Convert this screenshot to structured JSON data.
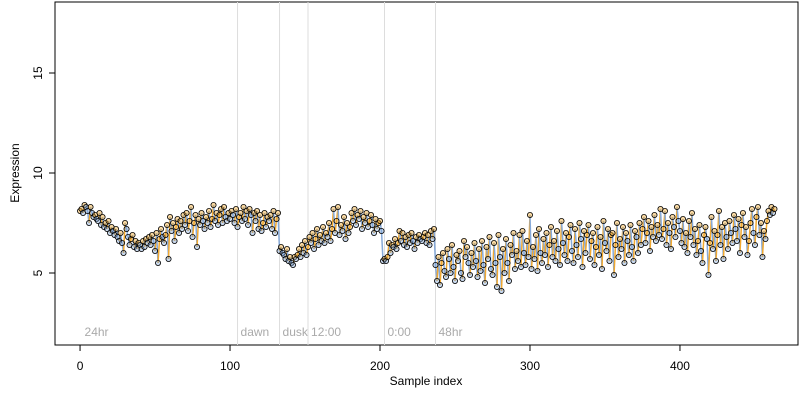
{
  "chart_data": {
    "type": "line",
    "x_label": "Sample index",
    "y_label": "Expression",
    "xlim": [
      -16.7,
      478.7
    ],
    "ylim": [
      1.4,
      18.55
    ],
    "xticks": [
      0,
      100,
      200,
      300,
      400
    ],
    "yticks": [
      5,
      10,
      15
    ],
    "up_color": "#f0a830",
    "down_color": "#86a9d8",
    "vline_color": "#dddddd",
    "annotation_color": "#aaaaaa",
    "annotations": [
      {
        "x": 1,
        "label": "24hr",
        "vline": false
      },
      {
        "x": 105,
        "label": "dawn",
        "vline": true
      },
      {
        "x": 133,
        "label": "dusk",
        "vline": true
      },
      {
        "x": 152,
        "label": "12:00",
        "vline": true
      },
      {
        "x": 203,
        "label": "0:00",
        "vline": true
      },
      {
        "x": 237,
        "label": "48hr",
        "vline": true
      }
    ],
    "values": [
      8.1,
      8.2,
      8.0,
      8.4,
      8.3,
      8.1,
      7.5,
      8.3,
      8.0,
      7.8,
      7.9,
      7.7,
      7.6,
      8.0,
      7.4,
      7.8,
      7.3,
      7.5,
      7.2,
      7.6,
      7.0,
      7.3,
      7.1,
      6.9,
      7.2,
      6.8,
      6.6,
      7.0,
      6.5,
      6.0,
      7.5,
      7.2,
      6.8,
      6.4,
      6.7,
      6.9,
      6.3,
      6.6,
      6.2,
      6.5,
      6.4,
      6.2,
      6.6,
      6.3,
      6.7,
      6.5,
      6.8,
      6.4,
      6.9,
      6.6,
      6.1,
      7.0,
      5.5,
      6.7,
      7.2,
      6.8,
      6.5,
      6.9,
      7.4,
      5.7,
      7.8,
      7.1,
      7.5,
      6.6,
      7.3,
      7.7,
      7.0,
      7.6,
      7.2,
      7.9,
      7.4,
      8.0,
      7.1,
      7.6,
      8.3,
      6.8,
      7.5,
      7.9,
      6.3,
      7.7,
      7.4,
      8.0,
      7.6,
      7.2,
      7.8,
      7.5,
      8.1,
      7.3,
      7.7,
      8.4,
      7.6,
      8.0,
      7.4,
      7.9,
      8.2,
      7.5,
      8.3,
      7.8,
      7.6,
      8.0,
      7.7,
      8.1,
      7.9,
      7.5,
      8.2,
      7.3,
      7.8,
      8.0,
      7.6,
      8.3,
      7.7,
      8.1,
      7.4,
      8.2,
      7.9,
      7.0,
      8.0,
      7.6,
      8.1,
      7.2,
      7.9,
      7.1,
      7.5,
      8.0,
      7.3,
      7.8,
      7.6,
      7.9,
      7.2,
      8.1,
      7.0,
      7.7,
      8.0,
      6.1,
      6.3,
      6.0,
      5.9,
      5.7,
      6.2,
      5.6,
      5.8,
      5.5,
      5.4,
      5.8,
      5.7,
      5.9,
      6.2,
      5.8,
      6.4,
      6.0,
      6.6,
      5.9,
      6.3,
      6.8,
      6.5,
      7.0,
      6.2,
      6.7,
      7.2,
      6.4,
      6.9,
      6.6,
      7.3,
      6.5,
      7.0,
      6.8,
      7.5,
      6.6,
      7.2,
      8.2,
      7.0,
      7.6,
      8.3,
      6.9,
      7.4,
      7.1,
      7.8,
      6.7,
      7.5,
      7.0,
      7.3,
      8.0,
      7.6,
      8.2,
      7.4,
      7.9,
      7.7,
      8.1,
      7.2,
      7.8,
      7.5,
      8.0,
      7.3,
      7.6,
      7.9,
      7.4,
      7.0,
      7.7,
      7.2,
      7.5,
      7.6,
      7.1,
      5.6,
      5.7,
      5.6,
      5.8,
      6.5,
      6.0,
      6.4,
      6.3,
      6.7,
      6.2,
      6.5,
      7.1,
      6.6,
      7.0,
      6.4,
      6.8,
      6.3,
      6.9,
      6.5,
      7.0,
      6.6,
      6.2,
      6.8,
      6.5,
      6.9,
      6.7,
      6.6,
      6.8,
      7.0,
      6.5,
      6.9,
      6.4,
      7.1,
      6.7,
      7.2,
      5.4,
      4.6,
      5.8,
      4.4,
      5.5,
      6.0,
      5.1,
      4.8,
      6.2,
      5.7,
      5.0,
      6.4,
      5.3,
      4.6,
      5.9,
      5.6,
      6.1,
      5.0,
      4.7,
      6.6,
      5.8,
      6.3,
      5.5,
      4.9,
      6.0,
      5.3,
      6.5,
      5.6,
      4.8,
      6.2,
      5.1,
      6.6,
      5.4,
      4.5,
      6.3,
      5.7,
      6.8,
      5.2,
      4.9,
      6.5,
      5.5,
      4.3,
      6.9,
      5.8,
      4.1,
      6.2,
      5.0,
      6.7,
      5.5,
      4.6,
      6.4,
      5.9,
      7.0,
      5.2,
      6.1,
      5.6,
      6.9,
      5.3,
      7.1,
      6.0,
      5.4,
      6.6,
      5.8,
      7.9,
      5.2,
      6.3,
      5.7,
      6.9,
      5.1,
      7.2,
      6.0,
      5.5,
      6.7,
      5.9,
      7.0,
      5.3,
      6.4,
      7.3,
      5.8,
      6.6,
      5.6,
      7.1,
      6.2,
      5.4,
      7.6,
      6.5,
      5.9,
      7.0,
      5.6,
      6.8,
      7.4,
      6.1,
      5.5,
      7.2,
      6.4,
      5.8,
      7.5,
      6.7,
      5.3,
      7.1,
      6.0,
      6.9,
      7.4,
      5.7,
      6.6,
      7.0,
      5.4,
      6.3,
      7.3,
      5.9,
      6.8,
      5.2,
      7.6,
      6.5,
      6.1,
      7.2,
      5.6,
      6.9,
      7.0,
      4.9,
      6.4,
      7.5,
      5.8,
      6.7,
      6.2,
      7.3,
      5.5,
      7.0,
      6.6,
      5.9,
      7.4,
      6.3,
      5.6,
      7.1,
      6.8,
      6.0,
      7.5,
      6.4,
      7.2,
      7.8,
      6.5,
      7.0,
      7.6,
      6.1,
      7.3,
      6.8,
      7.9,
      6.6,
      7.4,
      6.9,
      8.2,
      6.7,
      7.2,
      8.1,
      6.4,
      7.5,
      7.0,
      6.2,
      7.8,
      7.3,
      6.8,
      8.3,
      7.6,
      7.1,
      6.5,
      7.7,
      6.3,
      7.0,
      6.0,
      7.6,
      6.8,
      8.0,
      6.4,
      7.2,
      5.9,
      6.6,
      7.4,
      6.1,
      5.5,
      6.9,
      7.3,
      6.7,
      4.9,
      6.5,
      7.8,
      6.2,
      7.1,
      5.6,
      6.9,
      8.1,
      6.4,
      7.3,
      5.7,
      7.5,
      6.8,
      6.2,
      7.6,
      7.0,
      6.5,
      7.9,
      7.2,
      6.6,
      7.7,
      6.0,
      7.4,
      8.0,
      6.8,
      7.3,
      5.9,
      6.6,
      7.5,
      8.2,
      7.0,
      6.4,
      7.8,
      8.3,
      6.9,
      7.5,
      5.8,
      7.1,
      6.7,
      7.6,
      8.1,
      7.9,
      8.3,
      8.0,
      8.2
    ]
  }
}
